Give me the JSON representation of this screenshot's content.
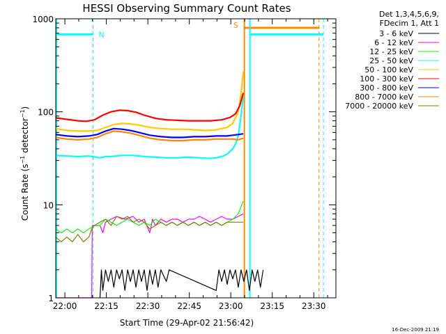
{
  "chart_data": {
    "type": "line",
    "title": "HESSI Observing Summary Count Rates",
    "xlabel": "Start Time (29-Apr-02 21:56:42)",
    "ylabel": "Count Rate (s⁻¹ detector⁻¹)",
    "ylabel_parts": {
      "main": "Count Rate (s",
      "exp1": "−1",
      "mid": " detector",
      "exp2": "−1",
      "end": ")"
    },
    "x_unit": "minutes after 21:56:42",
    "xlim": [
      0,
      101.3
    ],
    "ylim": [
      1,
      1000
    ],
    "yscale": "log",
    "x_ticks": [
      {
        "label": "22:00",
        "x": 3.3
      },
      {
        "label": "22:15",
        "x": 18.3
      },
      {
        "label": "22:30",
        "x": 33.3
      },
      {
        "label": "22:45",
        "x": 48.3
      },
      {
        "label": "23:00",
        "x": 63.3
      },
      {
        "label": "23:15",
        "x": 78.3
      },
      {
        "label": "23:30",
        "x": 93.3
      }
    ],
    "y_ticks": [
      {
        "label": "1",
        "y": 1
      },
      {
        "label": "10",
        "y": 10
      },
      {
        "label": "100",
        "y": 100
      },
      {
        "label": "1000",
        "y": 1000
      }
    ],
    "legend": {
      "position": "top-right outside",
      "header": [
        "Det 1,3,4,5,6,9,",
        "FDecim 1, Att 1"
      ]
    },
    "series": [
      {
        "name": "3 - 6 keV",
        "color": "#000000",
        "points": [
          [
            16,
            1
          ],
          [
            16.5,
            2
          ],
          [
            17,
            1.2
          ],
          [
            18,
            2
          ],
          [
            19,
            1.5
          ],
          [
            20,
            2
          ],
          [
            21,
            1.3
          ],
          [
            22,
            2
          ],
          [
            23,
            1.6
          ],
          [
            24,
            2
          ],
          [
            25,
            1.2
          ],
          [
            26,
            2
          ],
          [
            27,
            1.5
          ],
          [
            28,
            2
          ],
          [
            29,
            1.3
          ],
          [
            30,
            2
          ],
          [
            31,
            1.5
          ],
          [
            32,
            2
          ],
          [
            33,
            1.2
          ],
          [
            34,
            2
          ],
          [
            35,
            1.4
          ],
          [
            36,
            2
          ],
          [
            37,
            1.3
          ],
          [
            38,
            2
          ],
          [
            40,
            1.5
          ],
          [
            41,
            2
          ],
          [
            58,
            1.2
          ],
          [
            59,
            2
          ],
          [
            60,
            1.5
          ],
          [
            61,
            2
          ],
          [
            62,
            1.4
          ],
          [
            63,
            2
          ],
          [
            64,
            1.6
          ],
          [
            65,
            2
          ],
          [
            66,
            1.3
          ],
          [
            67,
            2
          ],
          [
            68,
            1.5
          ],
          [
            69,
            2
          ],
          [
            70,
            1.2
          ],
          [
            71,
            2
          ],
          [
            72,
            1.5
          ],
          [
            73,
            2
          ],
          [
            74,
            1.3
          ],
          [
            75,
            2
          ]
        ]
      },
      {
        "name": "6 - 12 keV",
        "color": "#ff00ff",
        "points": [
          [
            0,
            1
          ],
          [
            12,
            1
          ],
          [
            13,
            1
          ],
          [
            13.2,
            6
          ],
          [
            16,
            6
          ],
          [
            17,
            5
          ],
          [
            18,
            6.5
          ],
          [
            20,
            7
          ],
          [
            22,
            7.5
          ],
          [
            25,
            7
          ],
          [
            28,
            7.5
          ],
          [
            30,
            6.5
          ],
          [
            32,
            7
          ],
          [
            34,
            5
          ],
          [
            35,
            7
          ],
          [
            36,
            6
          ],
          [
            38,
            7
          ],
          [
            40,
            6.5
          ],
          [
            42,
            7
          ],
          [
            44,
            7
          ],
          [
            46,
            6.5
          ],
          [
            48,
            7
          ],
          [
            50,
            7
          ],
          [
            52,
            7.5
          ],
          [
            54,
            7
          ],
          [
            56,
            6.5
          ],
          [
            58,
            7
          ],
          [
            60,
            7.5
          ],
          [
            62,
            7
          ],
          [
            64,
            7
          ],
          [
            66,
            7.5
          ],
          [
            67.8,
            8
          ]
        ]
      },
      {
        "name": "12 - 25 keV",
        "color": "#00ff00",
        "points": [
          [
            0,
            5.5
          ],
          [
            2,
            5
          ],
          [
            4,
            5.5
          ],
          [
            6,
            5
          ],
          [
            8,
            5.5
          ],
          [
            10,
            5
          ],
          [
            12,
            5.5
          ],
          [
            14,
            6
          ],
          [
            16,
            6
          ],
          [
            18,
            7
          ],
          [
            20,
            6.5
          ],
          [
            22,
            6
          ],
          [
            24,
            6.5
          ],
          [
            26,
            7
          ],
          [
            28,
            6.5
          ],
          [
            30,
            6
          ],
          [
            32,
            6.5
          ],
          [
            34,
            6
          ],
          [
            36,
            7
          ],
          [
            38,
            6.5
          ],
          [
            40,
            6
          ],
          [
            42,
            6.5
          ],
          [
            44,
            6
          ],
          [
            46,
            6.5
          ],
          [
            48,
            6
          ],
          [
            50,
            6.5
          ],
          [
            52,
            6
          ],
          [
            54,
            6.5
          ],
          [
            56,
            6
          ],
          [
            58,
            6.5
          ],
          [
            60,
            6
          ],
          [
            62,
            6.5
          ],
          [
            64,
            7
          ],
          [
            66,
            8
          ],
          [
            67.8,
            11
          ]
        ]
      },
      {
        "name": "25 - 50 keV",
        "color": "#00ffff",
        "points": [
          [
            0,
            34
          ],
          [
            4,
            33.5
          ],
          [
            8,
            33
          ],
          [
            12,
            33.5
          ],
          [
            16,
            32
          ],
          [
            18,
            33
          ],
          [
            20,
            33
          ],
          [
            24,
            34
          ],
          [
            28,
            34
          ],
          [
            32,
            33
          ],
          [
            36,
            32.5
          ],
          [
            40,
            32
          ],
          [
            44,
            32
          ],
          [
            48,
            32.5
          ],
          [
            52,
            32
          ],
          [
            56,
            31.5
          ],
          [
            58,
            32
          ],
          [
            60,
            33
          ],
          [
            62,
            35
          ],
          [
            64,
            40
          ],
          [
            65,
            45
          ],
          [
            66,
            55
          ],
          [
            67,
            90
          ],
          [
            67.8,
            150
          ]
        ]
      },
      {
        "name": "50 - 100 keV",
        "color": "#ffcc00",
        "points": [
          [
            0,
            66
          ],
          [
            4,
            63
          ],
          [
            8,
            62
          ],
          [
            12,
            62
          ],
          [
            15,
            63
          ],
          [
            18,
            68
          ],
          [
            21,
            73
          ],
          [
            24,
            75
          ],
          [
            27,
            74
          ],
          [
            30,
            72
          ],
          [
            34,
            68
          ],
          [
            38,
            66
          ],
          [
            42,
            65
          ],
          [
            46,
            65
          ],
          [
            50,
            64
          ],
          [
            54,
            63
          ],
          [
            58,
            64
          ],
          [
            62,
            68
          ],
          [
            64,
            75
          ],
          [
            66,
            100
          ],
          [
            67,
            160
          ],
          [
            67.8,
            270
          ]
        ]
      },
      {
        "name": "100 - 300 keV",
        "color": "#ff0000",
        "points": [
          [
            0,
            86
          ],
          [
            4,
            83
          ],
          [
            8,
            80
          ],
          [
            11,
            79
          ],
          [
            14,
            82
          ],
          [
            17,
            92
          ],
          [
            20,
            100
          ],
          [
            23,
            104
          ],
          [
            26,
            103
          ],
          [
            29,
            99
          ],
          [
            32,
            92
          ],
          [
            36,
            85
          ],
          [
            40,
            82
          ],
          [
            44,
            81
          ],
          [
            48,
            80
          ],
          [
            52,
            80
          ],
          [
            56,
            80
          ],
          [
            60,
            82
          ],
          [
            63,
            87
          ],
          [
            65,
            95
          ],
          [
            66.5,
            115
          ],
          [
            67.8,
            160
          ]
        ]
      },
      {
        "name": "300 - 800 keV",
        "color": "#0000ff",
        "points": [
          [
            0,
            57
          ],
          [
            4,
            55
          ],
          [
            8,
            54
          ],
          [
            12,
            55
          ],
          [
            15,
            57
          ],
          [
            18,
            62
          ],
          [
            21,
            66
          ],
          [
            24,
            65
          ],
          [
            27,
            63
          ],
          [
            30,
            60
          ],
          [
            34,
            56
          ],
          [
            38,
            54
          ],
          [
            42,
            53
          ],
          [
            46,
            53
          ],
          [
            50,
            54
          ],
          [
            54,
            54
          ],
          [
            58,
            55
          ],
          [
            62,
            55
          ],
          [
            64,
            56
          ],
          [
            66,
            57
          ],
          [
            67.8,
            58
          ]
        ]
      },
      {
        "name": "800 - 7000 keV",
        "color": "#ff8800",
        "points": [
          [
            0,
            53
          ],
          [
            4,
            51
          ],
          [
            8,
            50
          ],
          [
            12,
            51
          ],
          [
            15,
            53
          ],
          [
            18,
            58
          ],
          [
            21,
            62
          ],
          [
            24,
            61
          ],
          [
            27,
            59
          ],
          [
            30,
            56
          ],
          [
            34,
            52
          ],
          [
            38,
            50
          ],
          [
            42,
            49
          ],
          [
            46,
            49
          ],
          [
            50,
            50
          ],
          [
            54,
            50
          ],
          [
            58,
            51
          ],
          [
            62,
            51
          ],
          [
            64,
            51
          ],
          [
            66,
            50
          ],
          [
            67.8,
            52
          ]
        ]
      },
      {
        "name": "7000 - 20000 keV",
        "color": "#808000",
        "points": [
          [
            0,
            4.5
          ],
          [
            2,
            4
          ],
          [
            4,
            4.5
          ],
          [
            6,
            4
          ],
          [
            8,
            4.8
          ],
          [
            10,
            4
          ],
          [
            12,
            4.5
          ],
          [
            13,
            5.5
          ],
          [
            14,
            6
          ],
          [
            16,
            6.5
          ],
          [
            18,
            7
          ],
          [
            20,
            6
          ],
          [
            22,
            7.5
          ],
          [
            24,
            7
          ],
          [
            26,
            7.5
          ],
          [
            28,
            6.5
          ],
          [
            30,
            7
          ],
          [
            32,
            6.5
          ],
          [
            34,
            5.5
          ],
          [
            36,
            6
          ],
          [
            38,
            6.5
          ],
          [
            40,
            6
          ],
          [
            42,
            6.5
          ],
          [
            44,
            6
          ],
          [
            46,
            6.5
          ],
          [
            48,
            6
          ],
          [
            50,
            6.5
          ],
          [
            52,
            6
          ],
          [
            54,
            6.5
          ],
          [
            56,
            6
          ],
          [
            58,
            6.5
          ],
          [
            60,
            6
          ],
          [
            62,
            6.5
          ],
          [
            64,
            6.5
          ],
          [
            66,
            6.5
          ],
          [
            67.8,
            6.5
          ]
        ]
      }
    ],
    "annotations": [
      {
        "label": "N",
        "color": "#00ffff",
        "x": 13.5,
        "y": 700
      },
      {
        "label": "S",
        "color": "#ff8800",
        "x": 67,
        "y": 800
      }
    ],
    "markers": {
      "saa_cyan_y": 680,
      "saa_orange_y": 800
    },
    "footer_date": "16-Dec-2009 21:19"
  }
}
